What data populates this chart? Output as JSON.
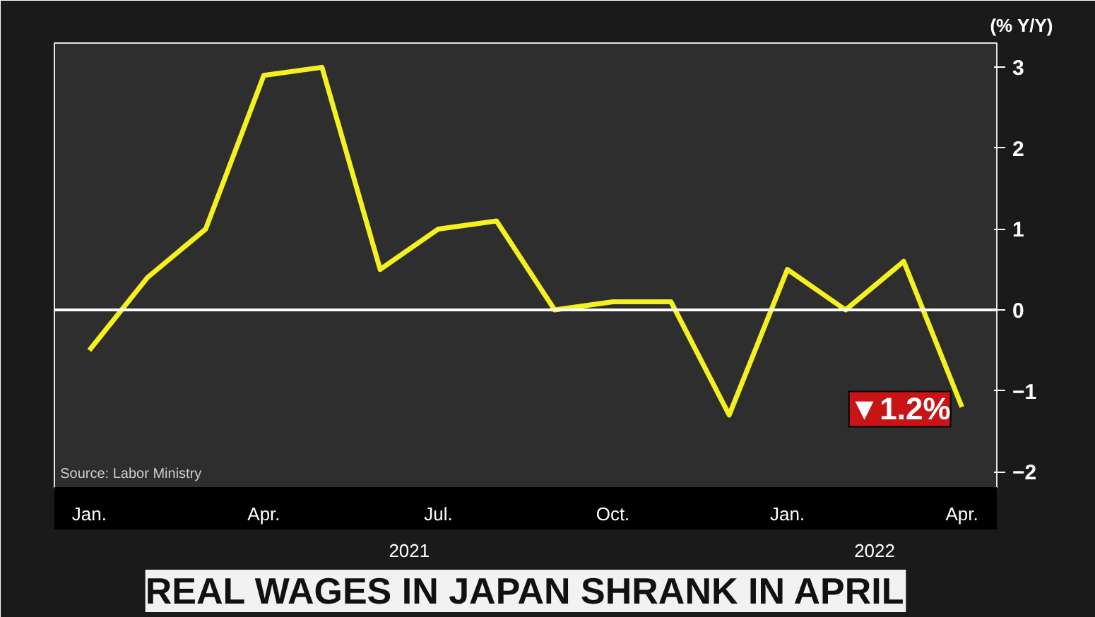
{
  "chart_data": {
    "type": "line",
    "title": "REAL WAGES IN JAPAN SHRANK IN APRIL",
    "ylabel": "(% Y/Y)",
    "categories": [
      "Jan.",
      null,
      null,
      "Apr.",
      null,
      null,
      "Jul.",
      null,
      null,
      "Oct.",
      null,
      null,
      "Jan.",
      null,
      null,
      "Apr."
    ],
    "series": [
      {
        "color": "#f5f020",
        "values": [
          -0.5,
          0.4,
          1.0,
          2.9,
          3.0,
          0.5,
          1.0,
          1.1,
          0.0,
          0.1,
          0.1,
          -1.3,
          0.5,
          0.0,
          0.6,
          -1.2
        ]
      }
    ],
    "ylim": [
      -2.2,
      3.3
    ],
    "yticks": [
      -2,
      -1,
      0,
      1,
      2,
      3
    ],
    "grid": false,
    "marker": "none",
    "line_style": "solid",
    "ref_lines": [
      {
        "axis": "y",
        "value": 0,
        "color": "#ffffff"
      }
    ],
    "annotations": [
      "Source: Labor Ministry",
      "2021",
      "2022",
      "▼1.2%"
    ]
  }
}
